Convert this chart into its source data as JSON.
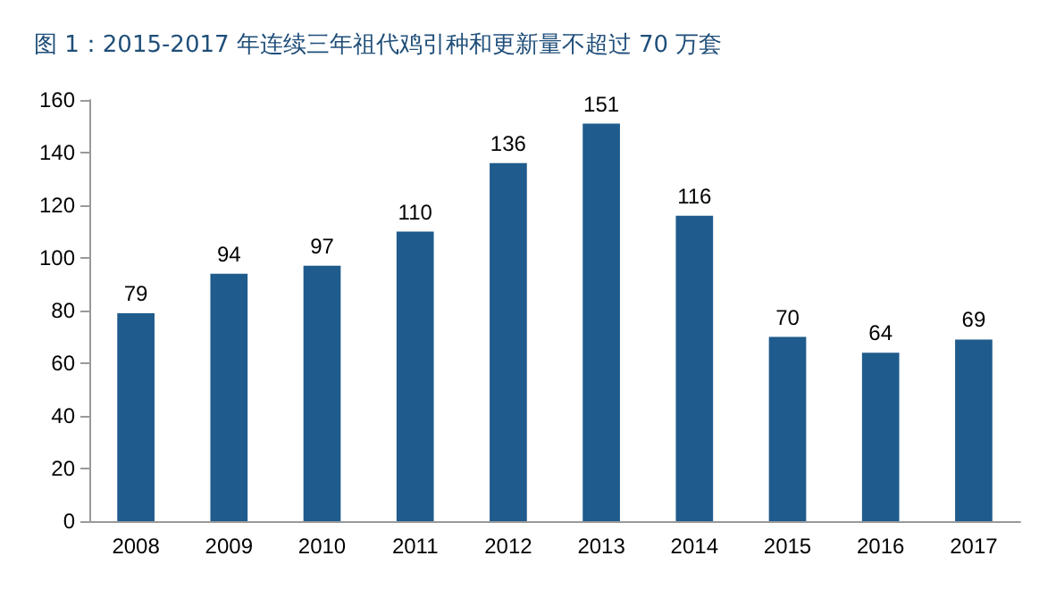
{
  "chart_data": {
    "type": "bar",
    "title": "图 1：2015-2017 年连续三年祖代鸡引种和更新量不超过 70 万套",
    "categories": [
      "2008",
      "2009",
      "2010",
      "2011",
      "2012",
      "2013",
      "2014",
      "2015",
      "2016",
      "2017"
    ],
    "values": [
      79,
      94,
      97,
      110,
      136,
      151,
      116,
      70,
      64,
      69
    ],
    "color": "#1f5b8c",
    "ylim": [
      0,
      160
    ],
    "yticks": [
      0,
      20,
      40,
      60,
      80,
      100,
      120,
      140,
      160
    ],
    "grid": false,
    "data_labels": true
  }
}
